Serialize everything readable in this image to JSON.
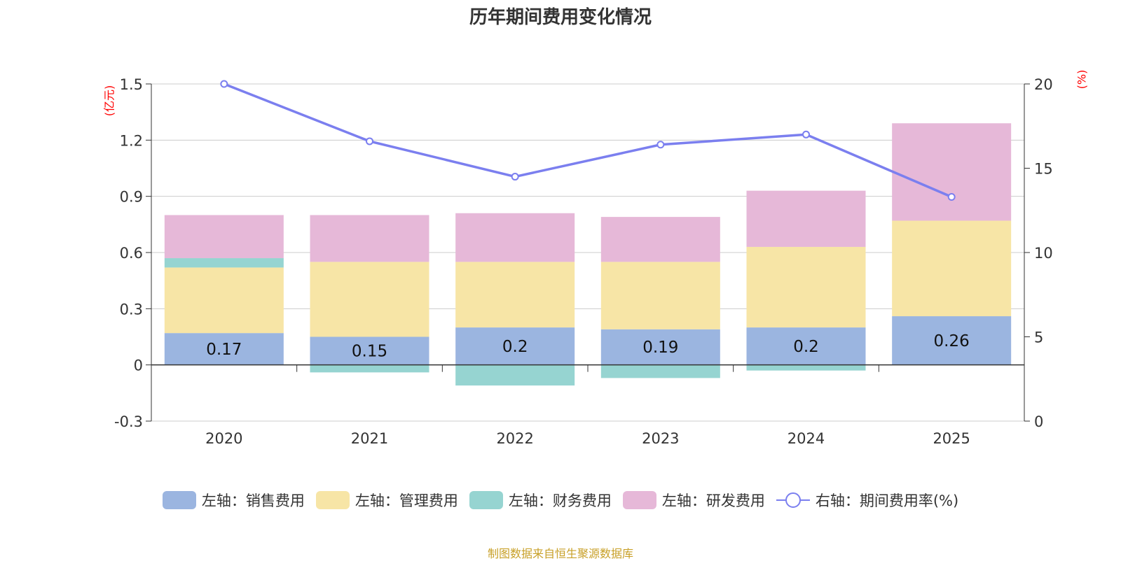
{
  "chart_data": {
    "type": "bar",
    "stacked": true,
    "title": "历年期间费用变化情况",
    "categories": [
      "2020",
      "2021",
      "2022",
      "2023",
      "2024",
      "2025"
    ],
    "left_axis": {
      "unit": "(亿元)",
      "ylim": [
        -0.3,
        1.5
      ],
      "ticks": [
        "-0.3",
        "0",
        "0.3",
        "0.6",
        "0.9",
        "1.2",
        "1.5"
      ],
      "tick_values": [
        -0.3,
        0,
        0.3,
        0.6,
        0.9,
        1.2,
        1.5
      ]
    },
    "right_axis": {
      "unit": "(%)",
      "ylim": [
        0,
        20
      ],
      "ticks": [
        "0",
        "5",
        "10",
        "15",
        "20"
      ],
      "tick_values": [
        0,
        5,
        10,
        15,
        20
      ]
    },
    "series": [
      {
        "name": "左轴：销售费用",
        "color": "#9bb5e0",
        "axis": "left",
        "values": [
          0.17,
          0.15,
          0.2,
          0.19,
          0.2,
          0.26
        ],
        "labels": [
          "0.17",
          "0.15",
          "0.2",
          "0.19",
          "0.2",
          "0.26"
        ]
      },
      {
        "name": "左轴：管理费用",
        "color": "#f7e5a6",
        "axis": "left",
        "values": [
          0.35,
          0.4,
          0.35,
          0.36,
          0.43,
          0.51
        ]
      },
      {
        "name": "左轴：财务费用",
        "color": "#96d4d1",
        "axis": "left",
        "values": [
          0.05,
          -0.04,
          -0.11,
          -0.07,
          -0.03,
          0.0
        ]
      },
      {
        "name": "左轴：研发费用",
        "color": "#e6b8d8",
        "axis": "left",
        "values": [
          0.23,
          0.25,
          0.26,
          0.24,
          0.3,
          0.52
        ]
      },
      {
        "name": "右轴：期间费用率(%)",
        "color": "#7b7fef",
        "axis": "right",
        "type": "line",
        "values": [
          20.0,
          16.6,
          14.5,
          16.4,
          17.0,
          13.3
        ]
      }
    ]
  },
  "source": "制图数据来自恒生聚源数据库"
}
